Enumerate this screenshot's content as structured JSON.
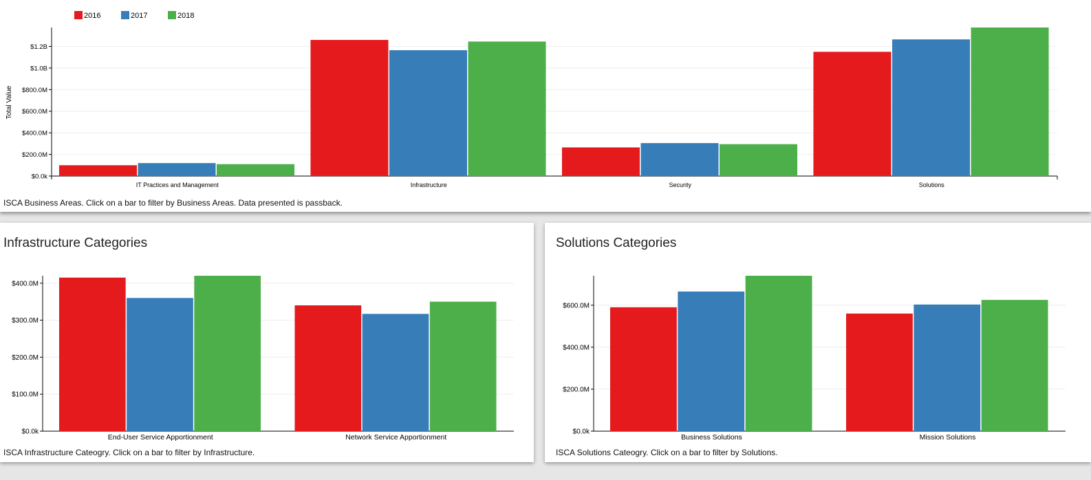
{
  "colors": {
    "2016": "#e41a1c",
    "2017": "#377eb8",
    "2018": "#4daf4a"
  },
  "legend": [
    {
      "label": "2016",
      "color": "#e41a1c"
    },
    {
      "label": "2017",
      "color": "#377eb8"
    },
    {
      "label": "2018",
      "color": "#4daf4a"
    }
  ],
  "top": {
    "caption": "ISCA Business Areas. Click on a bar to filter by Business Areas. Data presented is passback."
  },
  "infra": {
    "title": "Infrastructure Categories",
    "caption": "ISCA Infrastructure Cateogry. Click on a bar to filter by Infrastructure."
  },
  "sol": {
    "title": "Solutions Categories",
    "caption": "ISCA Solutions Cateogry. Click on a bar to filter by Solutions."
  },
  "chart_data": [
    {
      "type": "bar",
      "ylabel": "Total Value",
      "xlabel": "",
      "categories": [
        "IT Practices and Management",
        "Infrastructure",
        "Security",
        "Solutions"
      ],
      "series": [
        {
          "name": "2016",
          "values": [
            100000000,
            1260000000,
            265000000,
            1150000000
          ]
        },
        {
          "name": "2017",
          "values": [
            120000000,
            1165000000,
            305000000,
            1265000000
          ]
        },
        {
          "name": "2018",
          "values": [
            110000000,
            1245000000,
            295000000,
            1375000000
          ]
        }
      ],
      "ylim": [
        0,
        1375000000
      ],
      "yticks": [
        0,
        200000000,
        400000000,
        600000000,
        800000000,
        1000000000,
        1200000000
      ],
      "ytick_labels": [
        "$0.0k",
        "$200.0M",
        "$400.0M",
        "$600.0M",
        "$800.0M",
        "$1.0B",
        "$1.2B"
      ],
      "legend_position": "top-left",
      "grid": true
    },
    {
      "type": "bar",
      "categories": [
        "End-User Service Apportionment",
        "Network Service Apportionment"
      ],
      "series": [
        {
          "name": "2016",
          "values": [
            415000000,
            340000000
          ]
        },
        {
          "name": "2017",
          "values": [
            360000000,
            317000000
          ]
        },
        {
          "name": "2018",
          "values": [
            420000000,
            350000000
          ]
        }
      ],
      "ylim": [
        0,
        420000000
      ],
      "yticks": [
        0,
        100000000,
        200000000,
        300000000,
        400000000
      ],
      "ytick_labels": [
        "$0.0k",
        "$100.0M",
        "$200.0M",
        "$300.0M",
        "$400.0M"
      ],
      "grid": true
    },
    {
      "type": "bar",
      "categories": [
        "Business Solutions",
        "Mission Solutions"
      ],
      "series": [
        {
          "name": "2016",
          "values": [
            590000000,
            560000000
          ]
        },
        {
          "name": "2017",
          "values": [
            665000000,
            603000000
          ]
        },
        {
          "name": "2018",
          "values": [
            740000000,
            625000000
          ]
        }
      ],
      "ylim": [
        0,
        740000000
      ],
      "yticks": [
        0,
        200000000,
        400000000,
        600000000
      ],
      "ytick_labels": [
        "$0.0k",
        "$200.0M",
        "$400.0M",
        "$600.0M"
      ],
      "grid": true
    }
  ]
}
